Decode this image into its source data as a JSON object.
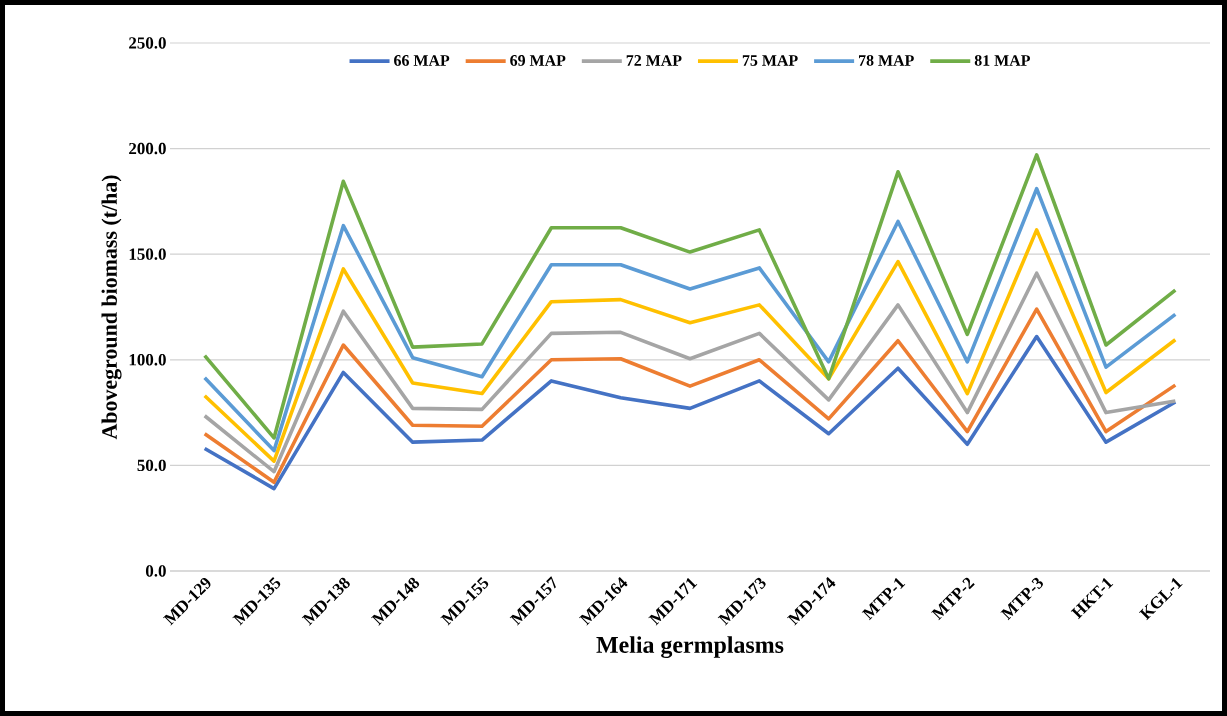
{
  "chart_data": {
    "type": "line",
    "xlabel": "Melia germplasms",
    "ylabel": "Aboveground biomass (t/ha)",
    "categories": [
      "MD-129",
      "MD-135",
      "MD-138",
      "MD-148",
      "MD-155",
      "MD-157",
      "MD-164",
      "MD-171",
      "MD-173",
      "MD-174",
      "MTP-1",
      "MTP-2",
      "MTP-3",
      "HKT-1",
      "KGL-1"
    ],
    "series": [
      {
        "name": "66 MAP",
        "color": "#4472c4",
        "values": [
          58,
          39,
          94,
          61,
          62,
          90,
          82,
          77,
          90,
          65,
          96,
          60,
          111,
          61,
          80
        ]
      },
      {
        "name": "69 MAP",
        "color": "#ed7d31",
        "values": [
          65,
          42,
          107,
          69,
          68.5,
          100,
          100.5,
          87.5,
          100,
          72,
          109,
          66,
          124,
          66,
          88
        ]
      },
      {
        "name": "72 MAP",
        "color": "#a5a5a5",
        "values": [
          73.5,
          47,
          123,
          77,
          76.5,
          112.5,
          113,
          100.5,
          112.5,
          81,
          126,
          75,
          141,
          75,
          80.5
        ]
      },
      {
        "name": "75 MAP",
        "color": "#ffc000",
        "values": [
          83,
          52,
          143,
          89,
          84,
          127.5,
          128.5,
          117.5,
          126,
          91,
          146.5,
          84,
          161.5,
          84.5,
          109.5
        ]
      },
      {
        "name": "78 MAP",
        "color": "#5b9bd5",
        "values": [
          91.5,
          57,
          163.5,
          101,
          92,
          145,
          145,
          133.5,
          143.5,
          99,
          165.5,
          99,
          181,
          96.5,
          121.5
        ]
      },
      {
        "name": "81 MAP",
        "color": "#70ad47",
        "values": [
          102,
          63,
          184.5,
          106,
          107.5,
          162.5,
          162.5,
          151,
          161.5,
          91,
          189,
          112,
          197,
          107,
          133
        ]
      }
    ],
    "ylim": [
      0,
      250
    ],
    "yticks": [
      {
        "value": 0,
        "label": "0.0"
      },
      {
        "value": 50,
        "label": "50.0"
      },
      {
        "value": 100,
        "label": "100.0"
      },
      {
        "value": 150,
        "label": "150.0"
      },
      {
        "value": 200,
        "label": "200.0"
      },
      {
        "value": 250,
        "label": "250.0"
      }
    ],
    "grid": "y",
    "legend": "top",
    "marker": "none",
    "line_style": "solid"
  }
}
